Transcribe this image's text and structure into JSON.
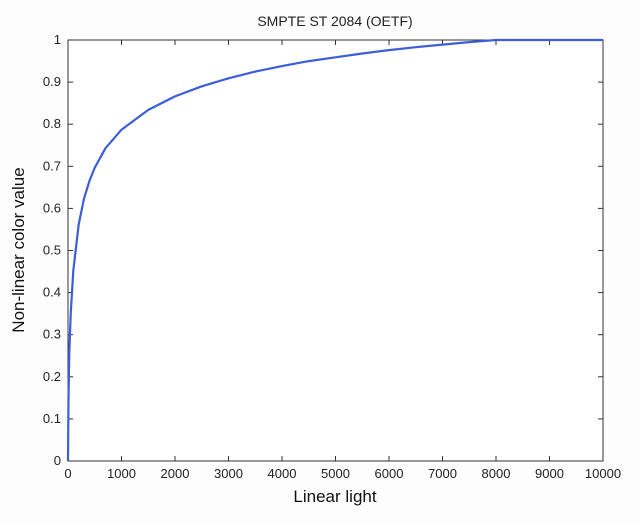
{
  "chart_data": {
    "type": "line",
    "title": "SMPTE ST 2084 (OETF)",
    "xlabel": "Linear light",
    "ylabel": "Non-linear color value",
    "xlim": [
      0,
      10000
    ],
    "ylim": [
      0,
      1
    ],
    "x_ticks": [
      0,
      1000,
      2000,
      3000,
      4000,
      5000,
      6000,
      7000,
      8000,
      9000,
      10000
    ],
    "y_ticks": [
      0,
      0.1,
      0.2,
      0.3,
      0.4,
      0.5,
      0.6,
      0.7,
      0.8,
      0.9,
      1
    ],
    "grid": false,
    "series": [
      {
        "color": "#3a5fd9",
        "x": [
          0,
          10,
          25,
          50,
          100,
          200,
          300,
          400,
          500,
          700,
          1000,
          1500,
          2000,
          2500,
          3000,
          3500,
          4000,
          4500,
          5000,
          5500,
          6000,
          6500,
          7000,
          7500,
          8000,
          8500,
          9000,
          9500,
          10000
        ],
        "y": [
          0,
          0.151,
          0.255,
          0.349,
          0.452,
          0.562,
          0.623,
          0.665,
          0.697,
          0.743,
          0.787,
          0.834,
          0.866,
          0.89,
          0.909,
          0.925,
          0.938,
          0.95,
          0.959,
          0.968,
          0.976,
          0.983,
          0.989,
          0.995,
          1.0,
          1.0,
          1.0,
          1.0,
          1.0
        ]
      }
    ]
  }
}
